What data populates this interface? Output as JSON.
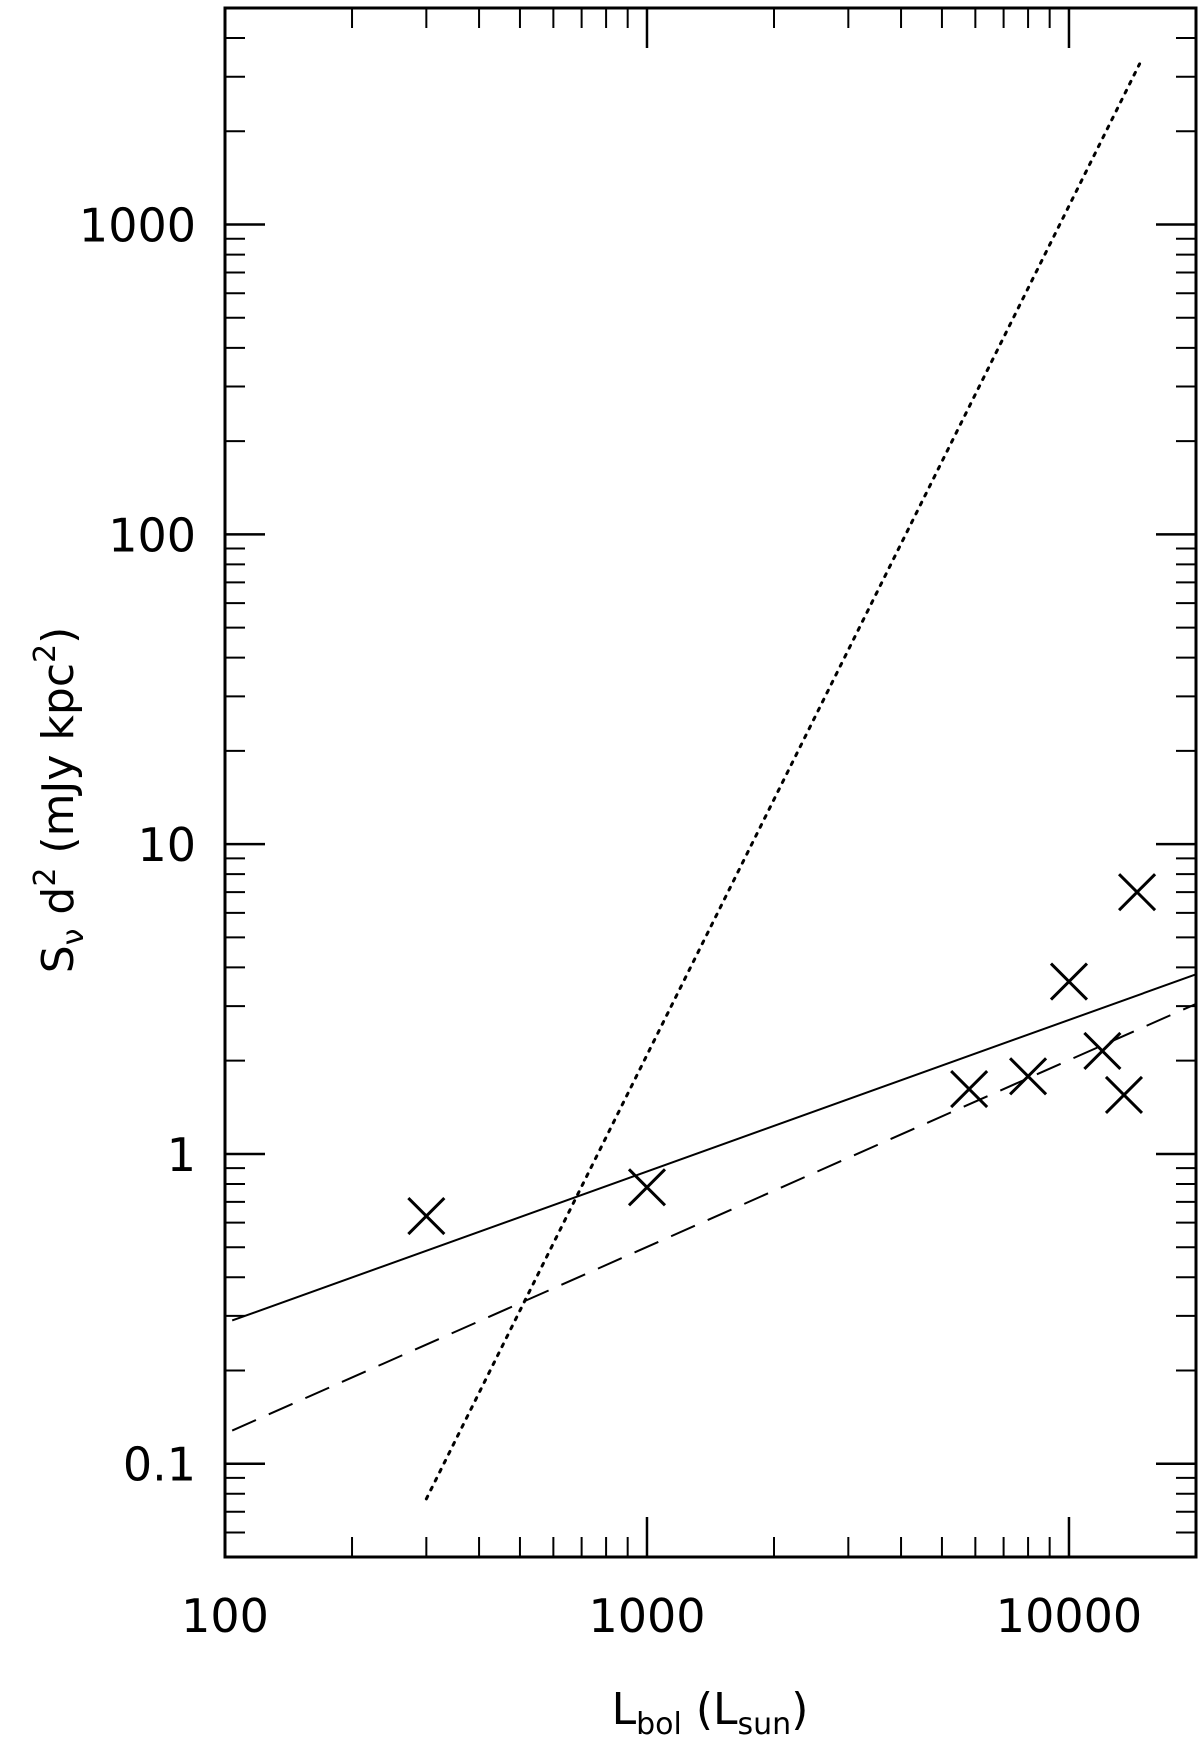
{
  "chart_data": {
    "type": "scatter",
    "title": "",
    "xlabel": {
      "main": "L",
      "sub": "bol",
      "open": " (L",
      "sub2": "sun",
      "close": ")"
    },
    "ylabel": {
      "main": "S",
      "sub": "ν",
      "mid": " d",
      "sup": "2",
      "rest": " (mJy kpc",
      "sup2": "2",
      "close": ")"
    },
    "x_scale": "log",
    "y_scale": "log",
    "xlim": [
      100,
      20000
    ],
    "ylim": [
      0.05,
      5000
    ],
    "x_ticks": [
      {
        "value": 100,
        "label": "100"
      },
      {
        "value": 1000,
        "label": "1000"
      },
      {
        "value": 10000,
        "label": "10000"
      }
    ],
    "y_ticks": [
      {
        "value": 0.1,
        "label": "0.1"
      },
      {
        "value": 1,
        "label": "1"
      },
      {
        "value": 10,
        "label": "10"
      },
      {
        "value": 100,
        "label": "100"
      },
      {
        "value": 1000,
        "label": "1000"
      }
    ],
    "grid": false,
    "legend": "none",
    "points": [
      {
        "x": 300,
        "y": 0.63
      },
      {
        "x": 1000,
        "y": 0.78
      },
      {
        "x": 5800,
        "y": 1.62
      },
      {
        "x": 8000,
        "y": 1.78
      },
      {
        "x": 10000,
        "y": 3.6
      },
      {
        "x": 12000,
        "y": 2.15
      },
      {
        "x": 13500,
        "y": 1.55
      },
      {
        "x": 14500,
        "y": 7.0
      }
    ],
    "lines": [
      {
        "style": "solid",
        "x": [
          104,
          20000
        ],
        "y": [
          0.29,
          3.8
        ]
      },
      {
        "style": "dashed",
        "x": [
          104,
          20000
        ],
        "y": [
          0.128,
          3.05
        ]
      },
      {
        "style": "dotted",
        "x": [
          300,
          14700
        ],
        "y": [
          0.077,
          3300
        ]
      }
    ]
  }
}
